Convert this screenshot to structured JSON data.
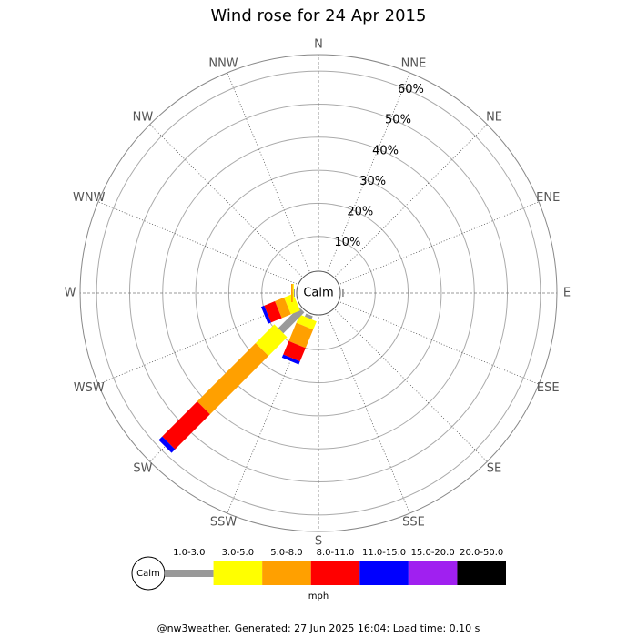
{
  "chart_data": {
    "type": "windrose",
    "title": "Wind rose for 24 Apr 2015",
    "categories": [
      "N",
      "NNE",
      "NE",
      "ENE",
      "E",
      "ESE",
      "SE",
      "SSE",
      "S",
      "SSW",
      "SW",
      "WSW",
      "W",
      "WNW",
      "NW",
      "NNW"
    ],
    "series": [
      {
        "name": "1.0-3.0",
        "color": "#999999",
        "values": [
          0,
          0,
          0,
          0,
          0.5,
          0,
          0,
          0,
          0,
          1,
          9,
          0,
          0.3,
          0,
          0,
          0
        ]
      },
      {
        "name": "3.0-5.0",
        "color": "#ffff00",
        "values": [
          0,
          0,
          0,
          0,
          0,
          0,
          0,
          0,
          0,
          2.7,
          8,
          3,
          0.3,
          0,
          0,
          0
        ]
      },
      {
        "name": "5.0-8.0",
        "color": "#ffa000",
        "values": [
          0,
          0,
          0,
          0,
          0,
          0,
          0,
          0,
          0,
          6,
          25,
          3,
          0.5,
          0,
          0,
          0
        ]
      },
      {
        "name": "8.0-11.0",
        "color": "#ff0000",
        "values": [
          0,
          0,
          0,
          0,
          0,
          0,
          0,
          0,
          0,
          4.4,
          15,
          3.5,
          0,
          0,
          0,
          0
        ]
      },
      {
        "name": "11.0-15.0",
        "color": "#0000ff",
        "values": [
          0,
          0,
          0,
          0,
          0,
          0,
          0,
          0,
          0,
          1,
          1.5,
          1,
          0,
          0,
          0,
          0
        ]
      },
      {
        "name": "15.0-20.0",
        "color": "#a020f0",
        "values": [
          0,
          0,
          0,
          0,
          0,
          0,
          0,
          0,
          0,
          0,
          0,
          0,
          0,
          0,
          0,
          0
        ]
      },
      {
        "name": "20.0-50.0",
        "color": "#000000",
        "values": [
          0,
          0,
          0,
          0,
          0,
          0,
          0,
          0,
          0,
          0,
          0,
          0,
          0,
          0,
          0,
          0
        ]
      }
    ],
    "rlim": [
      0,
      65
    ],
    "rticks": [
      {
        "value": 10,
        "label": "10%"
      },
      {
        "value": 20,
        "label": "20%"
      },
      {
        "value": 30,
        "label": "30%"
      },
      {
        "value": 40,
        "label": "40%"
      },
      {
        "value": 50,
        "label": "50%"
      },
      {
        "value": 60,
        "label": "60%"
      }
    ],
    "calm_label": "Calm",
    "unit_label": "mph",
    "footer": "@nw3weather. Generated: 27 Jun 2025 16:04; Load time: 0.10 s"
  }
}
